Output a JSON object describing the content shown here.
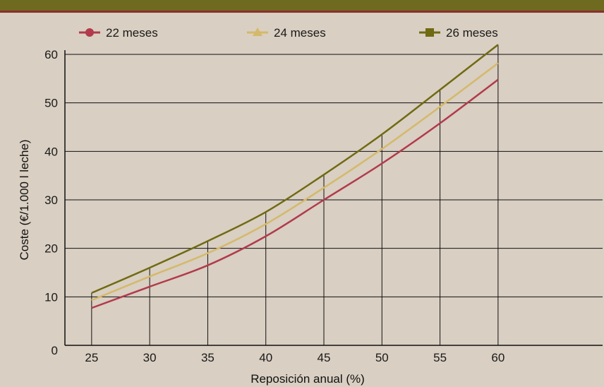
{
  "chart_data": {
    "type": "line",
    "title": "",
    "xlabel": "Reposición anual (%)",
    "ylabel": "Coste (€/1.000 l leche)",
    "x": [
      25,
      30,
      35,
      40,
      45,
      50,
      55,
      60
    ],
    "xticks": [
      "25",
      "30",
      "35",
      "40",
      "45",
      "50",
      "55",
      "60"
    ],
    "yticks": [
      "0",
      "10",
      "20",
      "30",
      "40",
      "50",
      "60"
    ],
    "ylim": [
      0,
      60
    ],
    "xlim": [
      22.7,
      69
    ],
    "grid": "horizontal lines plus vertical drop lines at each x",
    "legend": "top",
    "series": [
      {
        "name": "22 meses",
        "color": "#b13a4c",
        "marker": "circle",
        "values": [
          7.7,
          12.1,
          16.5,
          22.5,
          30,
          37.5,
          45.8,
          54.8
        ]
      },
      {
        "name": "24 meses",
        "color": "#d4b96a",
        "marker": "triangle",
        "values": [
          9.3,
          14.2,
          19.0,
          25.0,
          32.5,
          40.5,
          49.2,
          58.2
        ]
      },
      {
        "name": "26 meses",
        "color": "#706a12",
        "marker": "square",
        "values": [
          10.8,
          16.0,
          21.5,
          27.5,
          35.2,
          43.5,
          52.7,
          62.0
        ]
      }
    ]
  }
}
